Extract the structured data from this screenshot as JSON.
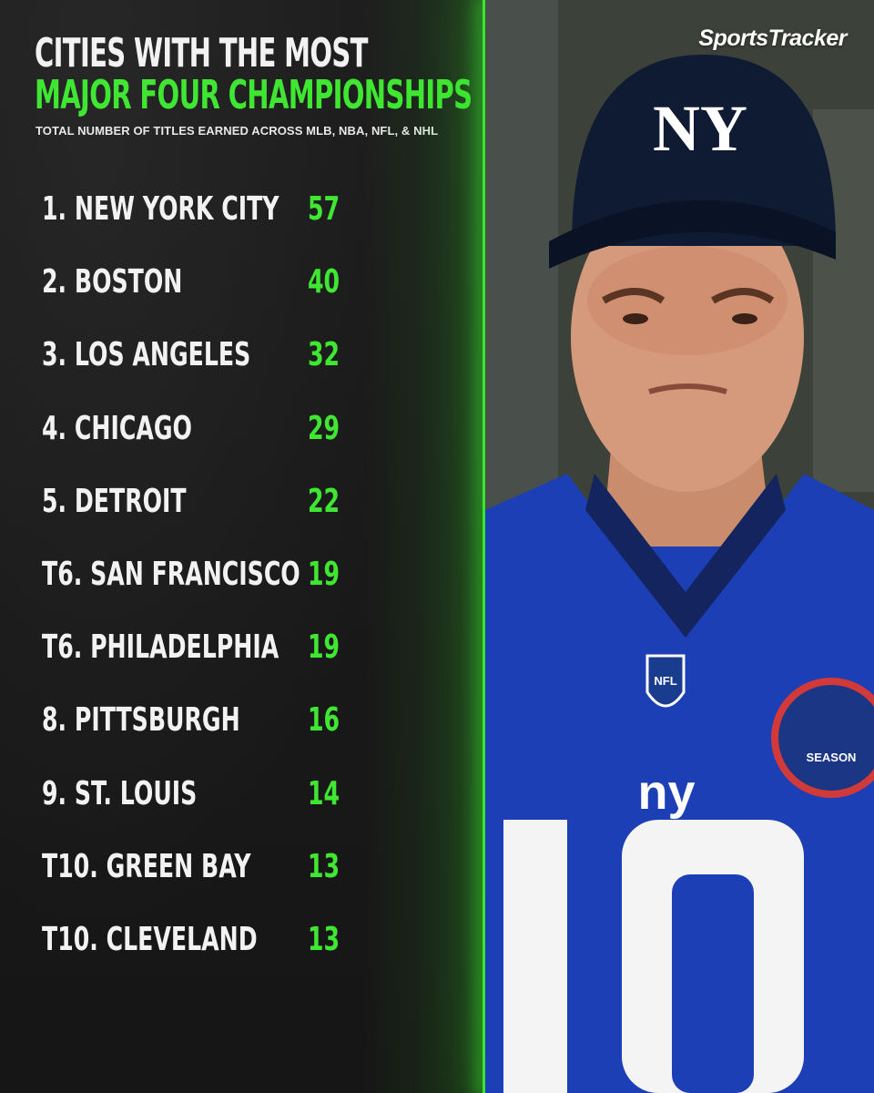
{
  "header": {
    "title_line1": "CITIES WITH THE MOST",
    "title_line2": "MAJOR FOUR CHAMPIONSHIPS",
    "subtitle": "TOTAL NUMBER OF TITLES EARNED ACROSS MLB, NBA, NFL, & NHL"
  },
  "brand": {
    "logo_text": "SportsTracker"
  },
  "colors": {
    "accent": "#3fe632",
    "text": "#f2f2f2",
    "background": "#1a1a1a",
    "jersey": "#1d3fb5",
    "cap": "#0f1a33"
  },
  "photo": {
    "subject": "player-photo",
    "cap_logo": "NY",
    "jersey_logo": "ny",
    "jersey_number": "10",
    "badge_text": "NFL",
    "patch_text": "SEASON"
  },
  "rankings": [
    {
      "rank": "1.",
      "city": "NEW YORK CITY",
      "titles": "57"
    },
    {
      "rank": "2.",
      "city": "BOSTON",
      "titles": "40"
    },
    {
      "rank": "3.",
      "city": "LOS ANGELES",
      "titles": "32"
    },
    {
      "rank": "4.",
      "city": "CHICAGO",
      "titles": "29"
    },
    {
      "rank": "5.",
      "city": "DETROIT",
      "titles": "22"
    },
    {
      "rank": "T6.",
      "city": "SAN FRANCISCO",
      "titles": "19"
    },
    {
      "rank": "T6.",
      "city": "PHILADELPHIA",
      "titles": "19"
    },
    {
      "rank": "8.",
      "city": "PITTSBURGH",
      "titles": "16"
    },
    {
      "rank": "9.",
      "city": "ST. LOUIS",
      "titles": "14"
    },
    {
      "rank": "T10.",
      "city": "GREEN BAY",
      "titles": "13"
    },
    {
      "rank": "T10.",
      "city": "CLEVELAND",
      "titles": "13"
    }
  ]
}
